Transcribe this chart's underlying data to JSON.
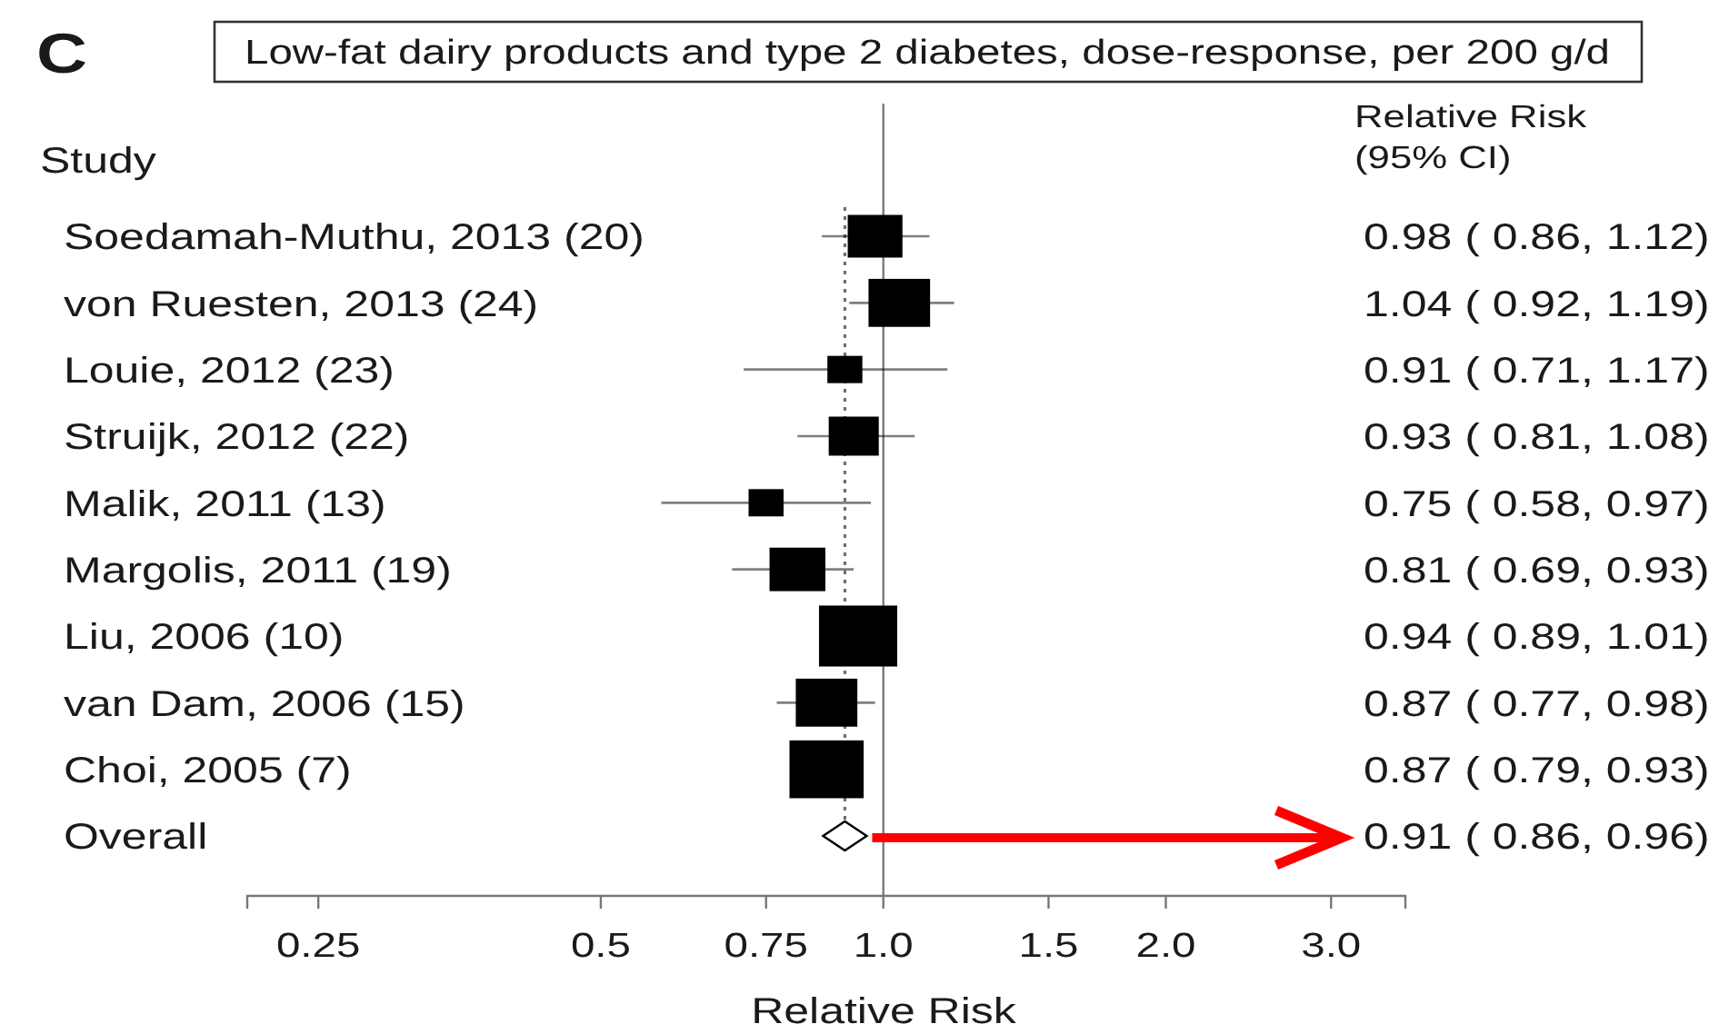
{
  "chart_data": {
    "type": "scatter",
    "orientation": "horizontal",
    "title": "Low-fat dairy products and type 2 diabetes, dose-response, per 200 g/d",
    "ylabel": "Study",
    "xlabel": "Relative Risk",
    "annotations": [
      "C",
      "Relative Risk\n(95% CI)"
    ],
    "categories": [
      "Soedamah-Muthu, 2013 (20)",
      "von Ruesten, 2013 (24)",
      "Louie, 2012 (23)",
      "Struijk, 2012 (22)",
      "Malik, 2011 (13)",
      "Margolis, 2011 (19)",
      "Liu, 2006 (10)",
      "van Dam, 2006 (15)",
      "Choi, 2005 (7)",
      "Overall"
    ],
    "series": [
      {
        "type": "bubble",
        "marker": "square",
        "color": "#000000",
        "values": [
          0.98,
          1.04,
          0.91,
          0.93,
          0.75,
          0.81,
          0.94,
          0.87,
          0.87,
          null
        ],
        "errors": [
          [
            0.86,
            1.12
          ],
          [
            0.92,
            1.19
          ],
          [
            0.71,
            1.17
          ],
          [
            0.81,
            1.08
          ],
          [
            0.58,
            0.97
          ],
          [
            0.69,
            0.93
          ],
          null,
          [
            0.77,
            0.98
          ],
          null,
          null
        ],
        "sizes": [
          0.49,
          0.62,
          0.2,
          0.41,
          0.2,
          0.51,
          1,
          0.62,
          0.9,
          null
        ],
        "value_labels": [
          "0.98 ( 0.86, 1.12)",
          "1.04 ( 0.92, 1.19)",
          "0.91 ( 0.71, 1.17)",
          "0.93 ( 0.81, 1.08)",
          "0.75 ( 0.58, 0.97)",
          "0.81 ( 0.69, 0.93)",
          "0.94 ( 0.89, 1.01)",
          "0.87 ( 0.77, 0.98)",
          "0.87 ( 0.79, 0.93)",
          null
        ]
      },
      {
        "marker": "diamond",
        "color": "#000000",
        "values": [
          null,
          null,
          null,
          null,
          null,
          null,
          null,
          null,
          null,
          0.91
        ],
        "value_labels": [
          null,
          null,
          null,
          null,
          null,
          null,
          null,
          null,
          null,
          "0.91 ( 0.86, 0.96)"
        ]
      }
    ],
    "ref_lines": [
      {
        "axis": "x",
        "value": 1,
        "color": "#707070"
      },
      {
        "axis": "x",
        "value": 0.91,
        "color": "#707070",
        "line_style": "dotted"
      }
    ],
    "log": "x",
    "xlim": [
      0.21,
      3.6
    ],
    "xticks": [
      0.25,
      0.5,
      0.75,
      {
        "value": 1,
        "label": "1.0"
      },
      1.5,
      {
        "value": 2,
        "label": "2.0"
      },
      {
        "value": 3,
        "label": "3.0"
      }
    ]
  }
}
